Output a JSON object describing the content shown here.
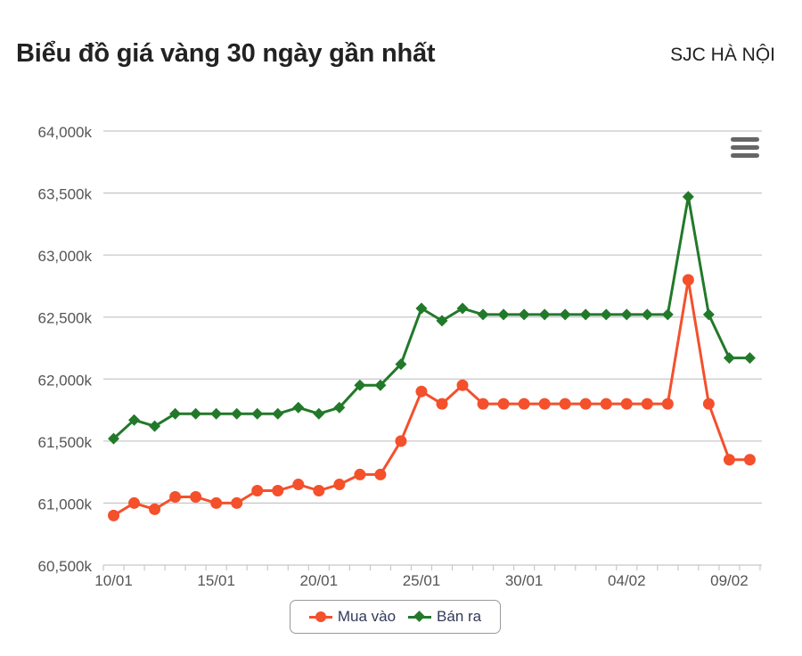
{
  "header": {
    "title": "Biểu đồ giá vàng 30 ngày gần nhất",
    "source": "SJC HÀ NỘI"
  },
  "menu": {
    "icon": "hamburger-menu-icon"
  },
  "colors": {
    "buy": "#f4502c",
    "sell": "#22792a",
    "grid": "#c8c8c8",
    "axis_text": "#555555"
  },
  "legend": {
    "items": [
      {
        "label": "Mua vào",
        "color": "#f4502c",
        "symbol": "circle"
      },
      {
        "label": "Bán ra",
        "color": "#22792a",
        "symbol": "diamond"
      }
    ]
  },
  "chart_data": {
    "type": "line",
    "title": "Biểu đồ giá vàng 30 ngày gần nhất",
    "subtitle": "SJC HÀ NỘI",
    "xlabel": "",
    "ylabel": "",
    "ylim": [
      60500,
      64000
    ],
    "yticks": [
      "60,500k",
      "61,000k",
      "61,500k",
      "62,000k",
      "62,500k",
      "63,000k",
      "63,500k",
      "64,000k"
    ],
    "ytick_values": [
      60500,
      61000,
      61500,
      62000,
      62500,
      63000,
      63500,
      64000
    ],
    "xtick_labels": [
      "10/01",
      "15/01",
      "20/01",
      "25/01",
      "30/01",
      "04/02",
      "09/02"
    ],
    "xtick_indices": [
      0,
      5,
      10,
      15,
      20,
      25,
      30
    ],
    "grid": true,
    "legend_position": "bottom-center",
    "x": [
      "10/01",
      "11/01",
      "12/01",
      "13/01",
      "14/01",
      "15/01",
      "16/01",
      "17/01",
      "18/01",
      "19/01",
      "20/01",
      "21/01",
      "22/01",
      "23/01",
      "24/01",
      "25/01",
      "26/01",
      "27/01",
      "28/01",
      "29/01",
      "30/01",
      "31/01",
      "01/02",
      "02/02",
      "03/02",
      "04/02",
      "05/02",
      "06/02",
      "07/02",
      "08/02",
      "09/02",
      "10/02"
    ],
    "series": [
      {
        "name": "Mua vào",
        "marker": "circle",
        "color": "#f4502c",
        "values": [
          60900,
          61000,
          60950,
          61050,
          61050,
          61000,
          61000,
          61100,
          61100,
          61150,
          61100,
          61150,
          61230,
          61230,
          61500,
          61900,
          61800,
          61950,
          61800,
          61800,
          61800,
          61800,
          61800,
          61800,
          61800,
          61800,
          61800,
          61800,
          62800,
          61800,
          61350,
          61350
        ]
      },
      {
        "name": "Bán ra",
        "marker": "diamond",
        "color": "#22792a",
        "values": [
          61520,
          61670,
          61620,
          61720,
          61720,
          61720,
          61720,
          61720,
          61720,
          61770,
          61720,
          61770,
          61950,
          61950,
          62120,
          62570,
          62470,
          62570,
          62520,
          62520,
          62520,
          62520,
          62520,
          62520,
          62520,
          62520,
          62520,
          62520,
          63470,
          62520,
          62170,
          62170
        ]
      }
    ]
  }
}
